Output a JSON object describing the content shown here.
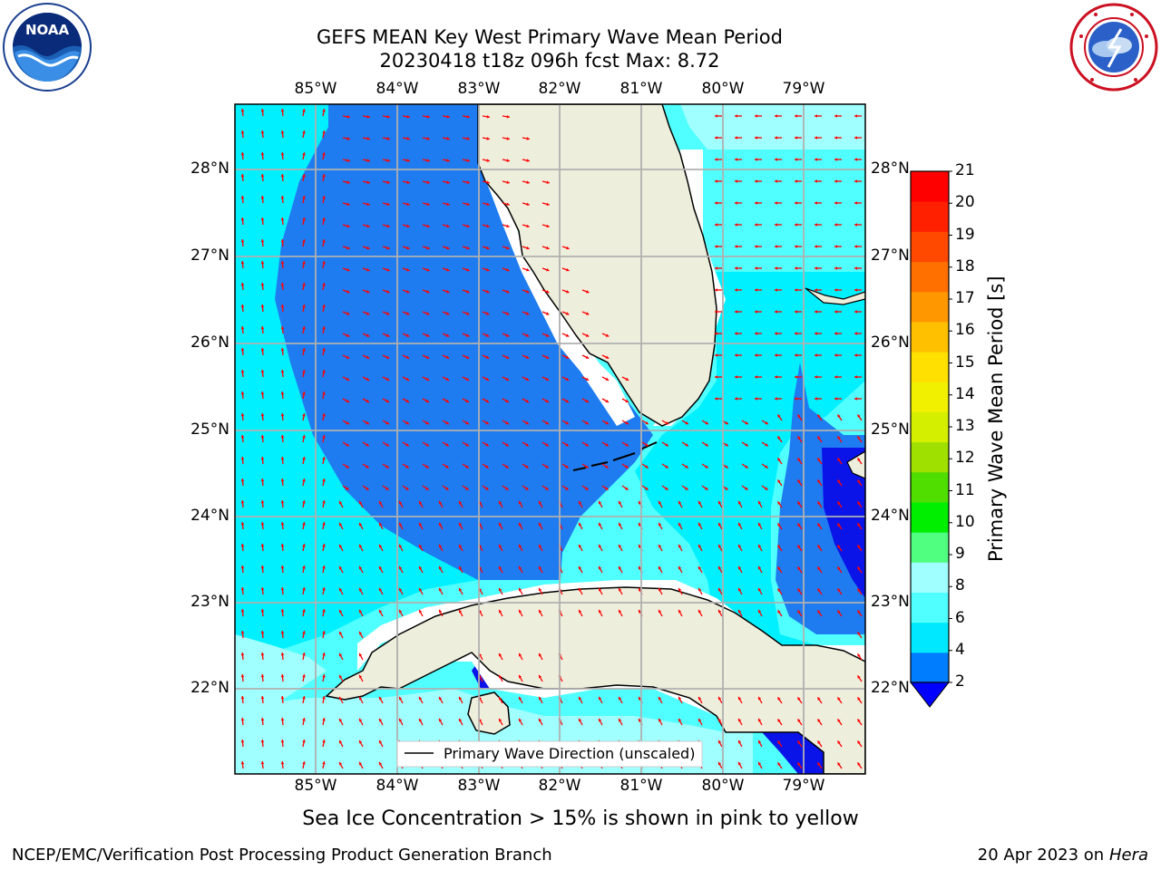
{
  "header": {
    "title_line1": "GEFS MEAN Key West Primary Wave Mean Period",
    "title_line2": "20230418 t18z 096h fcst   Max: 8.72"
  },
  "logos": {
    "left": {
      "name": "NOAA",
      "ring_text": "NATIONAL OCEANIC AND ATMOSPHERIC ADMINISTRATION · U.S. DEPARTMENT OF COMMERCE"
    },
    "right": {
      "name": "NATIONAL WEATHER SERVICE"
    }
  },
  "map": {
    "lon_ticks": [
      "85°W",
      "84°W",
      "83°W",
      "82°W",
      "81°W",
      "80°W",
      "79°W"
    ],
    "lat_ticks": [
      "28°N",
      "27°N",
      "26°N",
      "25°N",
      "24°N",
      "23°N",
      "22°N"
    ],
    "legend_text": "Primary Wave Direction (unscaled)",
    "colors": {
      "land": "#eeeedd",
      "band_2_4": "#1e7cf0",
      "band_4_6": "#00f0ff",
      "band_6_8": "#50ffff",
      "band_8_9": "#a0ffff",
      "deep_blue": "#0a14e8",
      "arrow": "#ff0000",
      "grid": "#b0b0b0"
    }
  },
  "colorbar": {
    "label": "Primary Wave Mean Period [s]",
    "ticks": [
      "21",
      "20",
      "19",
      "18",
      "17",
      "16",
      "15",
      "14",
      "13",
      "12",
      "11",
      "10",
      "9",
      "8",
      "6",
      "4",
      "2"
    ],
    "colors": [
      "#0000ff",
      "#007cff",
      "#00e8ff",
      "#50ffff",
      "#a0ffff",
      "#50ff80",
      "#00ee00",
      "#50dd00",
      "#a0e000",
      "#d4f000",
      "#f0f000",
      "#ffe000",
      "#ffc000",
      "#ff9800",
      "#ff7000",
      "#ff4800",
      "#ff2000",
      "#ff0000"
    ]
  },
  "caption": "Sea Ice Concentration > 15% is shown in pink to yellow",
  "footer": {
    "left": "NCEP/EMC/Verification Post Processing Product Generation Branch",
    "right_date": "20 Apr 2023 on ",
    "right_host": "Hera"
  }
}
